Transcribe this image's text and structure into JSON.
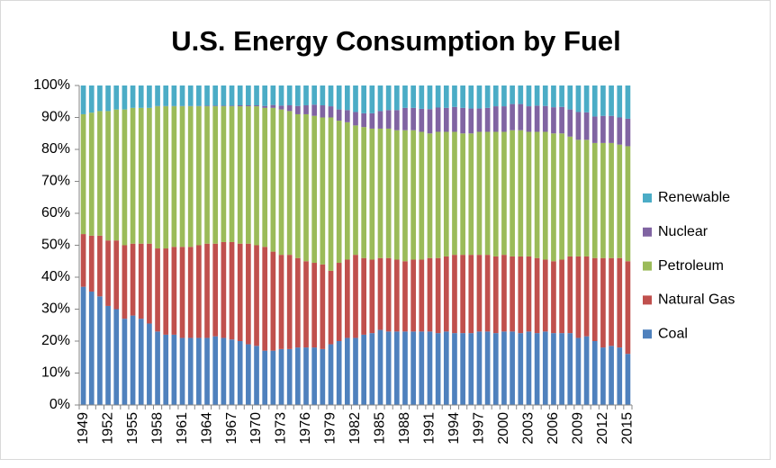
{
  "chart_data": {
    "type": "stacked_bar_100",
    "title": "U.S. Energy Consumption by Fuel",
    "categories": [
      "1949",
      null,
      null,
      "1952",
      null,
      null,
      "1955",
      null,
      null,
      "1958",
      null,
      null,
      "1961",
      null,
      null,
      "1964",
      null,
      null,
      "1967",
      null,
      null,
      "1970",
      null,
      null,
      "1973",
      null,
      null,
      "1976",
      null,
      null,
      "1979",
      null,
      null,
      "1982",
      null,
      null,
      "1985",
      null,
      null,
      "1988",
      null,
      null,
      "1991",
      null,
      null,
      "1994",
      null,
      null,
      "1997",
      null,
      null,
      "2000",
      null,
      null,
      "2003",
      null,
      null,
      "2006",
      null,
      null,
      "2009",
      null,
      null,
      "2012",
      null,
      null,
      "2015"
    ],
    "series": [
      {
        "name": "Coal",
        "color": "#4f81bd",
        "values": [
          37,
          35.5,
          34,
          31,
          30,
          27,
          28,
          27,
          25.5,
          23,
          22,
          22,
          21,
          21,
          21,
          21,
          21.5,
          21,
          20.5,
          20,
          19,
          18.5,
          17,
          17,
          17.5,
          17.5,
          18,
          18,
          18,
          17.5,
          19,
          20,
          21,
          21,
          22,
          22.5,
          23.5,
          23,
          23,
          23,
          23,
          23,
          23,
          22.5,
          23,
          22.5,
          22.5,
          22.5,
          23,
          23,
          22.5,
          23,
          23,
          22.5,
          23,
          22.5,
          23,
          22.5,
          22.5,
          22.5,
          21,
          21.5,
          20,
          18,
          18.5,
          18,
          16
        ]
      },
      {
        "name": "Natural Gas",
        "color": "#c0504d",
        "values": [
          16.5,
          17.5,
          19,
          20.5,
          21.5,
          23,
          22.5,
          23.5,
          25,
          26,
          27,
          27.5,
          28.5,
          28.5,
          29,
          29.5,
          29,
          30,
          30.5,
          30.5,
          31.5,
          31.5,
          32.5,
          31,
          29.5,
          29.5,
          28,
          27,
          26.5,
          26.5,
          23,
          24.5,
          24.5,
          26,
          24,
          23,
          22.5,
          23,
          22.5,
          22,
          22.5,
          22.5,
          23,
          23.5,
          23.5,
          24.5,
          24.5,
          24.5,
          24,
          24,
          24,
          24,
          23.5,
          24,
          23.5,
          23.5,
          22.5,
          22.5,
          23,
          24,
          25.5,
          25,
          26,
          28,
          27.5,
          28,
          29
        ]
      },
      {
        "name": "Petroleum",
        "color": "#9bbb59",
        "values": [
          37.5,
          38.5,
          39,
          40.5,
          41,
          42.5,
          42.5,
          42.5,
          42.5,
          44.5,
          44.5,
          44,
          44,
          44,
          43.5,
          43,
          43,
          42.5,
          42.5,
          43,
          43,
          43.5,
          43.5,
          45,
          45.5,
          45,
          45,
          46,
          46,
          46,
          48,
          44.5,
          43,
          40.5,
          41,
          41,
          40.5,
          40.5,
          40.5,
          41,
          40.5,
          40,
          39,
          39.5,
          39,
          38.5,
          38,
          38,
          38.5,
          38.5,
          39,
          38.5,
          39.5,
          39.5,
          39,
          39.5,
          40,
          40,
          39.5,
          37.5,
          36.5,
          36.5,
          36,
          36,
          36,
          35.5,
          36
        ]
      },
      {
        "name": "Nuclear",
        "color": "#8064a2",
        "values": [
          0,
          0,
          0,
          0,
          0,
          0,
          0,
          0,
          0,
          0.1,
          0.1,
          0.1,
          0.1,
          0.1,
          0.1,
          0.2,
          0.2,
          0.2,
          0.2,
          0.3,
          0.3,
          0.3,
          0.6,
          0.9,
          1.2,
          1.8,
          2.6,
          2.8,
          3.5,
          3.8,
          3.5,
          3.5,
          3.8,
          4.2,
          4.3,
          4.8,
          5.5,
          5.8,
          6.3,
          7,
          7,
          7.2,
          7.6,
          7.6,
          7.5,
          7.8,
          8,
          7.8,
          7.3,
          7.5,
          8,
          8,
          8.2,
          8.2,
          8,
          8.2,
          8.1,
          8.2,
          8.3,
          8.5,
          8.7,
          8.6,
          8.3,
          8.5,
          8.5,
          8.5,
          8.6
        ]
      },
      {
        "name": "Renewable",
        "color": "#4bacc6",
        "values": [
          9,
          8.5,
          8,
          8,
          7.5,
          7.5,
          7,
          7,
          7,
          6.4,
          6.4,
          6.4,
          6.4,
          6.4,
          6.4,
          6.3,
          6.3,
          6.3,
          6.3,
          6.2,
          6.2,
          6.2,
          6.4,
          6.1,
          6.3,
          6.2,
          6.4,
          6.2,
          6,
          6.2,
          6.5,
          7.5,
          7.7,
          8.3,
          8.7,
          8.7,
          8,
          7.7,
          7.7,
          7,
          7,
          7.3,
          7.4,
          6.9,
          7,
          6.7,
          7,
          7.2,
          7.2,
          7,
          6.5,
          6.5,
          5.8,
          5.8,
          6.5,
          6.3,
          6.4,
          6.8,
          6.7,
          7.5,
          8.3,
          8.4,
          9.7,
          9.5,
          9.5,
          10,
          10.4
        ]
      }
    ],
    "ylim": [
      0,
      100
    ],
    "yticks": [
      {
        "value": 0,
        "label": "0%"
      },
      {
        "value": 10,
        "label": "10%"
      },
      {
        "value": 20,
        "label": "20%"
      },
      {
        "value": 30,
        "label": "30%"
      },
      {
        "value": 40,
        "label": "40%"
      },
      {
        "value": 50,
        "label": "50%"
      },
      {
        "value": 60,
        "label": "60%"
      },
      {
        "value": 70,
        "label": "70%"
      },
      {
        "value": 80,
        "label": "80%"
      },
      {
        "value": 90,
        "label": "90%"
      },
      {
        "value": 100,
        "label": "100%"
      }
    ],
    "legend": "right",
    "grid": false
  }
}
